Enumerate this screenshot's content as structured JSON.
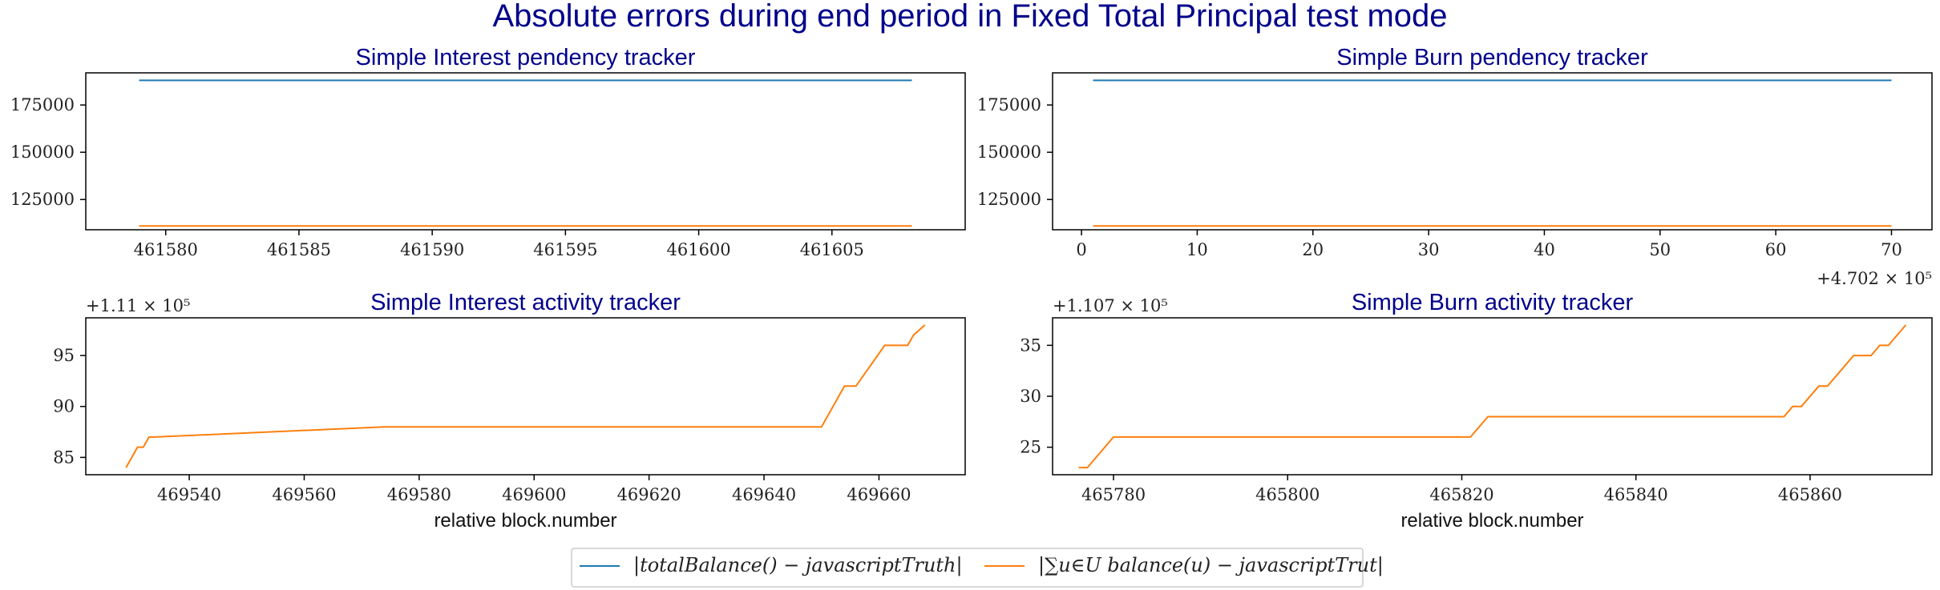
{
  "suptitle": "Absolute errors during end period in Fixed Total Principal test mode",
  "colors": {
    "title": "#00008b",
    "series_blue": "#1f77b4",
    "series_orange": "#ff7f0e"
  },
  "legend": {
    "placement": "bottom-center",
    "entries": [
      {
        "label": "|totalBalance() − javascriptTruth|",
        "color": "#1f77b4"
      },
      {
        "label": "|∑u∈U balance(u) − javascriptTrut|",
        "color": "#ff7f0e"
      }
    ]
  },
  "chart_data": [
    {
      "id": "p1",
      "type": "line",
      "title": "Simple Interest pendency tracker",
      "xlabel": "",
      "ylabel": "",
      "xlim": [
        461577,
        461610
      ],
      "ylim": [
        109000,
        192000
      ],
      "xticks": [
        461580,
        461585,
        461590,
        461595,
        461600,
        461605
      ],
      "xtick_labels": [
        "461580",
        "461585",
        "461590",
        "461595",
        "461600",
        "461605"
      ],
      "yticks": [
        125000,
        150000,
        175000
      ],
      "ytick_labels": [
        "125000",
        "150000",
        "175000"
      ],
      "offset_text": "",
      "series": [
        {
          "color": "#1f77b4",
          "x": [
            461579,
            461608
          ],
          "y": [
            188000,
            188000
          ]
        },
        {
          "color": "#ff7f0e",
          "x": [
            461579,
            461608
          ],
          "y": [
            111000,
            111000
          ]
        }
      ]
    },
    {
      "id": "p2",
      "type": "line",
      "title": "Simple Burn pendency tracker",
      "xlabel": "",
      "ylabel": "",
      "xlim": [
        -2.5,
        73.5
      ],
      "ylim": [
        109000,
        192000
      ],
      "xticks": [
        0,
        10,
        20,
        30,
        40,
        50,
        60,
        70
      ],
      "xtick_labels": [
        "0",
        "10",
        "20",
        "30",
        "40",
        "50",
        "60",
        "70"
      ],
      "yticks": [
        125000,
        150000,
        175000
      ],
      "ytick_labels": [
        "125000",
        "150000",
        "175000"
      ],
      "x_offset_text": "+4.702 × 10⁵",
      "series": [
        {
          "color": "#1f77b4",
          "x": [
            1,
            70
          ],
          "y": [
            188000,
            188000
          ]
        },
        {
          "color": "#ff7f0e",
          "x": [
            1,
            70
          ],
          "y": [
            111000,
            111000
          ]
        }
      ]
    },
    {
      "id": "p3",
      "type": "line",
      "title": "Simple Interest activity tracker",
      "xlabel": "relative block.number",
      "ylabel": "",
      "xlim": [
        469522,
        469675
      ],
      "ylim": [
        83.3,
        98.7
      ],
      "xticks": [
        469540,
        469560,
        469580,
        469600,
        469620,
        469640,
        469660
      ],
      "xtick_labels": [
        "469540",
        "469560",
        "469580",
        "469600",
        "469620",
        "469640",
        "469660"
      ],
      "yticks": [
        85,
        90,
        95
      ],
      "ytick_labels": [
        "85",
        "90",
        "95"
      ],
      "y_offset_text": "+1.11 × 10⁵",
      "series": [
        {
          "color": "#ff7f0e",
          "x": [
            469529,
            469531,
            469532,
            469533,
            469534,
            469574,
            469650,
            469654,
            469656,
            469661,
            469665,
            469666,
            469668
          ],
          "y": [
            84,
            86,
            86,
            87,
            87,
            88,
            88,
            92,
            92,
            96,
            96,
            97,
            98
          ]
        }
      ]
    },
    {
      "id": "p4",
      "type": "line",
      "title": "Simple Burn activity tracker",
      "xlabel": "relative block.number",
      "ylabel": "",
      "xlim": [
        465773,
        465874
      ],
      "ylim": [
        22.3,
        37.7
      ],
      "xticks": [
        465780,
        465800,
        465820,
        465840,
        465860
      ],
      "xtick_labels": [
        "465780",
        "465800",
        "465820",
        "465840",
        "465860"
      ],
      "yticks": [
        25,
        30,
        35
      ],
      "ytick_labels": [
        "25",
        "30",
        "35"
      ],
      "y_offset_text": "+1.107 × 10⁵",
      "series": [
        {
          "color": "#ff7f0e",
          "x": [
            465776,
            465777,
            465780,
            465821,
            465823,
            465857,
            465858,
            465859,
            465861,
            465862,
            465865,
            465867,
            465868,
            465869,
            465871
          ],
          "y": [
            23,
            23,
            26,
            26,
            28,
            28,
            29,
            29,
            31,
            31,
            34,
            34,
            35,
            35,
            37
          ]
        }
      ]
    }
  ]
}
